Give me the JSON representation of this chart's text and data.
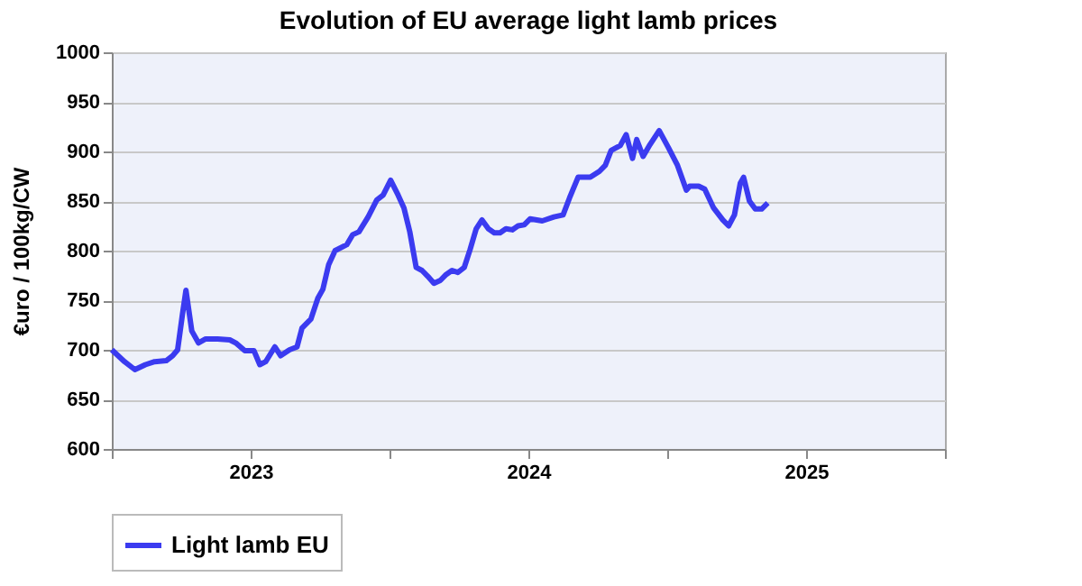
{
  "chart_data": {
    "type": "line",
    "title": "Evolution of EU average light lamb prices",
    "ylabel": "€uro / 100kg/CW",
    "x": [
      2022.5,
      2022.546,
      2022.583,
      2022.621,
      2022.654,
      2022.696,
      2022.719,
      2022.737,
      2022.754,
      2022.767,
      2022.788,
      2022.812,
      2022.838,
      2022.881,
      2022.925,
      2022.946,
      2022.979,
      2023.012,
      2023.033,
      2023.054,
      2023.087,
      2023.108,
      2023.14,
      2023.167,
      2023.185,
      2023.217,
      2023.242,
      2023.26,
      2023.281,
      2023.304,
      2023.346,
      2023.367,
      2023.39,
      2023.423,
      2023.454,
      2023.477,
      2023.504,
      2023.531,
      2023.552,
      2023.573,
      2023.596,
      2023.617,
      2023.638,
      2023.66,
      2023.683,
      2023.704,
      2023.725,
      2023.746,
      2023.769,
      2023.79,
      2023.812,
      2023.833,
      2023.856,
      2023.877,
      2023.898,
      2023.919,
      2023.942,
      2023.963,
      2023.985,
      2024.006,
      2024.05,
      2024.092,
      2024.125,
      2024.148,
      2024.179,
      2024.223,
      2024.256,
      2024.277,
      2024.298,
      2024.331,
      2024.352,
      2024.375,
      2024.39,
      2024.413,
      2024.438,
      2024.471,
      2024.504,
      2024.537,
      2024.569,
      2024.581,
      2024.613,
      2024.635,
      2024.667,
      2024.7,
      2024.721,
      2024.742,
      2024.763,
      2024.775,
      2024.796,
      2024.817,
      2024.84,
      2024.862
    ],
    "series": [
      {
        "name": "Light lamb EU",
        "color": "#3b3bf0",
        "values": [
          700,
          688,
          680,
          685,
          688,
          689,
          694,
          700,
          735,
          760,
          719,
          707,
          711,
          711,
          710,
          707,
          699,
          699,
          685,
          688,
          703,
          694,
          700,
          703,
          722,
          731,
          752,
          761,
          786,
          800,
          806,
          816,
          819,
          834,
          851,
          856,
          871,
          856,
          843,
          819,
          783,
          780,
          774,
          767,
          770,
          776,
          780,
          778,
          783,
          801,
          822,
          831,
          822,
          818,
          818,
          822,
          821,
          825,
          826,
          832,
          830,
          834,
          836,
          853,
          874,
          874,
          880,
          886,
          901,
          906,
          917,
          893,
          912,
          895,
          907,
          921,
          904,
          886,
          861,
          865,
          865,
          862,
          843,
          831,
          825,
          836,
          868,
          874,
          850,
          842,
          842,
          848
        ]
      }
    ],
    "xlim": [
      2022.5,
      2025.5
    ],
    "xticks": [
      {
        "value": 2022.5,
        "label": null
      },
      2023,
      {
        "value": 2023.5,
        "label": null
      },
      2024,
      {
        "value": 2024.5,
        "label": null
      },
      2025,
      {
        "value": 2025.5,
        "label": null
      }
    ],
    "ylim": [
      600,
      1000
    ],
    "yticks": [
      600,
      650,
      700,
      750,
      800,
      850,
      900,
      950,
      1000
    ],
    "grid": "y",
    "legend": "bottom",
    "marker": "none",
    "line_style": "solid"
  }
}
